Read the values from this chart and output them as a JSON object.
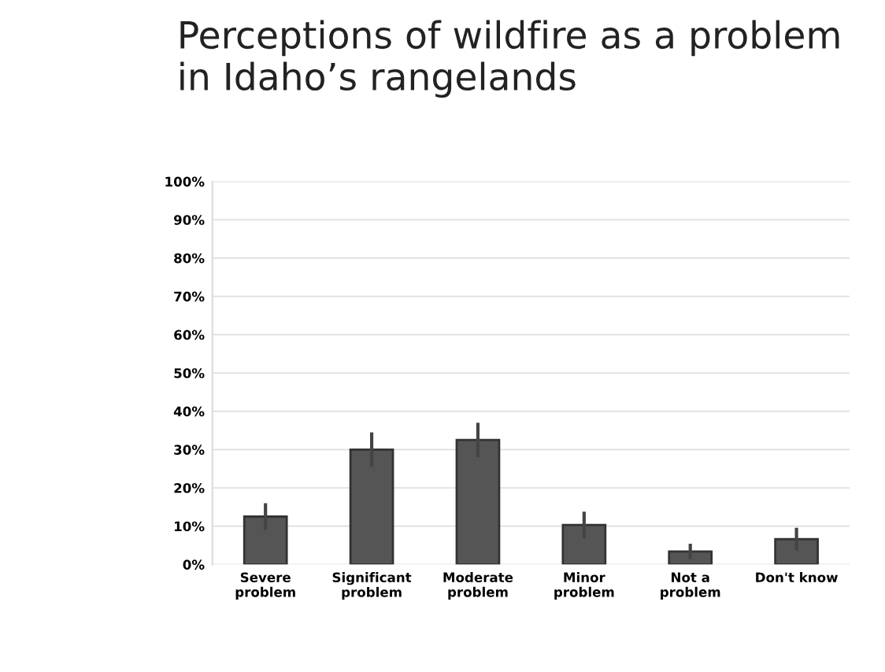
{
  "chart_data": {
    "type": "bar",
    "title": "Perceptions of wildfire as a problem\nin Idaho’s rangelands",
    "categories": [
      "Severe\nproblem",
      "Significant\nproblem",
      "Moderate\nproblem",
      "Minor\nproblem",
      "Not a\nproblem",
      "Don't know"
    ],
    "values": [
      12.5,
      30,
      32.5,
      10.3,
      3.4,
      6.6
    ],
    "errors": [
      3.5,
      4.5,
      4.5,
      3.5,
      2,
      3
    ],
    "color": "#555555",
    "ylim": [
      0,
      100
    ],
    "yticks": [
      {
        "value": 0,
        "label": "0%"
      },
      {
        "value": 10,
        "label": "10%"
      },
      {
        "value": 20,
        "label": "20%"
      },
      {
        "value": 30,
        "label": "30%"
      },
      {
        "value": 40,
        "label": "40%"
      },
      {
        "value": 50,
        "label": "50%"
      },
      {
        "value": 60,
        "label": "60%"
      },
      {
        "value": 70,
        "label": "70%"
      },
      {
        "value": 80,
        "label": "80%"
      },
      {
        "value": 90,
        "label": "90%"
      },
      {
        "value": 100,
        "label": "100%"
      }
    ],
    "grid": "y"
  }
}
